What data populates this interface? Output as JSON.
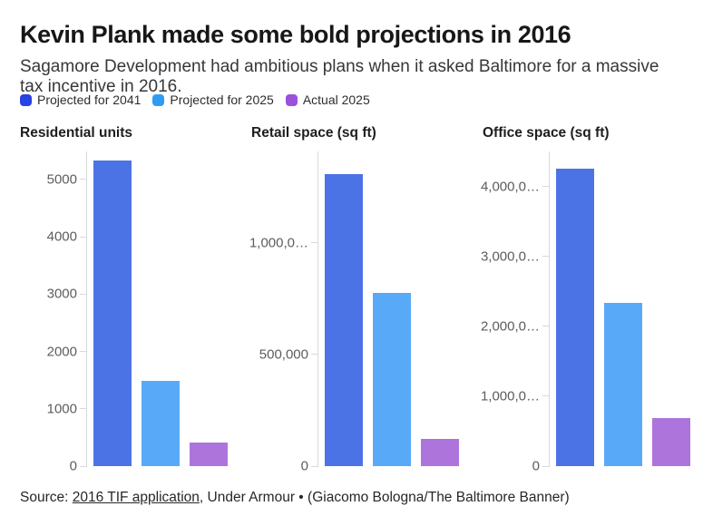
{
  "header": {
    "title": "Kevin Plank made some bold projections in 2016",
    "subtitle": "Sagamore Development had ambitious plans when it asked Baltimore for a massive tax incentive in 2016."
  },
  "legend": {
    "items": [
      {
        "label": "Projected for 2041",
        "color": "#2743e3"
      },
      {
        "label": "Projected for 2025",
        "color": "#2f9cf4"
      },
      {
        "label": "Actual 2025",
        "color": "#9b51dc"
      }
    ]
  },
  "chart_data": [
    {
      "type": "bar",
      "title": "Residential units",
      "categories": [
        "Projected for 2041",
        "Projected for 2025",
        "Actual 2025"
      ],
      "values": [
        5330,
        1490,
        415
      ],
      "bar_colors": [
        "#4c73e6",
        "#58aaf9",
        "#ad74dc"
      ],
      "ylim": [
        0,
        5490
      ],
      "grid": false,
      "yticks": [
        {
          "value": 0,
          "label": "0"
        },
        {
          "value": 1000,
          "label": "1000"
        },
        {
          "value": 2000,
          "label": "2000"
        },
        {
          "value": 3000,
          "label": "3000"
        },
        {
          "value": 4000,
          "label": "4000"
        },
        {
          "value": 5000,
          "label": "5000"
        }
      ]
    },
    {
      "type": "bar",
      "title": "Retail space (sq ft)",
      "categories": [
        "Projected for 2041",
        "Projected for 2025",
        "Actual 2025"
      ],
      "values": [
        1310000,
        775000,
        122000
      ],
      "bar_colors": [
        "#4c73e6",
        "#58aaf9",
        "#ad74dc"
      ],
      "ylim": [
        0,
        1410000
      ],
      "grid": false,
      "yticks": [
        {
          "value": 0,
          "label": "0"
        },
        {
          "value": 500000,
          "label": "500,000"
        },
        {
          "value": 1000000,
          "label": "1,000,0…"
        }
      ]
    },
    {
      "type": "bar",
      "title": "Office space (sq ft)",
      "categories": [
        "Projected for 2041",
        "Projected for 2025",
        "Actual 2025"
      ],
      "values": [
        4260000,
        2340000,
        690000
      ],
      "bar_colors": [
        "#4c73e6",
        "#58aaf9",
        "#ad74dc"
      ],
      "ylim": [
        0,
        4500000
      ],
      "grid": false,
      "yticks": [
        {
          "value": 0,
          "label": "0"
        },
        {
          "value": 1000000,
          "label": "1,000,0…"
        },
        {
          "value": 2000000,
          "label": "2,000,0…"
        },
        {
          "value": 3000000,
          "label": "3,000,0…"
        },
        {
          "value": 4000000,
          "label": "4,000,0…"
        }
      ]
    }
  ],
  "footer": {
    "source_prefix": "Source: ",
    "source_link": "2016 TIF application",
    "source_suffix": ", Under Armour • (Giacomo Bologna/The Baltimore Banner)"
  }
}
